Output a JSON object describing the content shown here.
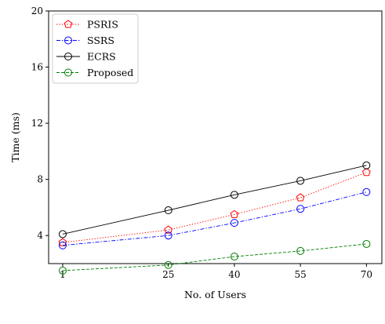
{
  "chart_data": {
    "type": "line",
    "title": "",
    "xlabel": "No. of Users",
    "ylabel": "Time (ms)",
    "x": [
      1,
      25,
      40,
      55,
      70
    ],
    "xticks": [
      "1",
      "25",
      "40",
      "55",
      "70"
    ],
    "yticks": [
      "4",
      "8",
      "12",
      "16",
      "20"
    ],
    "ylim": [
      2,
      20
    ],
    "grid": false,
    "legend_position": "top-left",
    "series": [
      {
        "name": "PSRIS",
        "values": [
          3.5,
          4.4,
          5.5,
          6.7,
          8.5
        ],
        "color": "#ff0000",
        "marker": "pentagon",
        "linestyle": "dotted"
      },
      {
        "name": "SSRS",
        "values": [
          3.3,
          4.0,
          4.9,
          5.9,
          7.1
        ],
        "color": "#0000ff",
        "marker": "circle",
        "linestyle": "dashdot"
      },
      {
        "name": "ECRS",
        "values": [
          4.1,
          5.8,
          6.9,
          7.9,
          9.0
        ],
        "color": "#000000",
        "marker": "circle",
        "linestyle": "solid"
      },
      {
        "name": "Proposed",
        "values": [
          1.5,
          1.9,
          2.5,
          2.9,
          3.4
        ],
        "color": "#008000",
        "marker": "circle",
        "linestyle": "dashed"
      }
    ]
  }
}
